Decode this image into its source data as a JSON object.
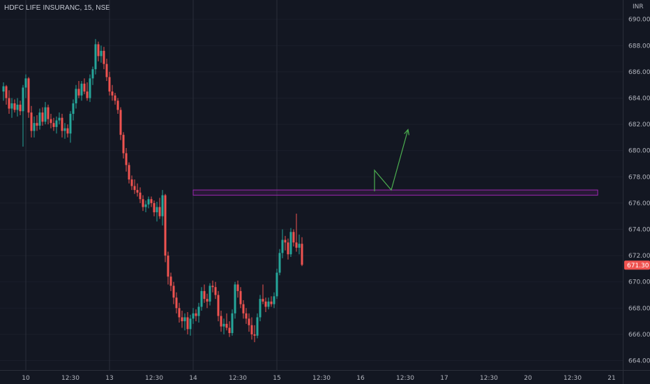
{
  "header": {
    "symbol_line": "HDFC LIFE INSURANC, 15, NSE"
  },
  "axis": {
    "currency": "INR"
  },
  "colors": {
    "up": "#26a69a",
    "down": "#ef5350",
    "zone": "#9c27b0",
    "arrow": "#4caf50",
    "background": "#131722"
  },
  "chart_data": {
    "type": "candlestick",
    "title": "HDFC LIFE INSURANC, 15, NSE",
    "ylabel": "INR",
    "ylim": [
      663.5,
      691.5
    ],
    "yticks": [
      664,
      666,
      668,
      670,
      672,
      674,
      676,
      678,
      680,
      682,
      684,
      686,
      688,
      690
    ],
    "ytick_labels": [
      "664.00",
      "666.00",
      "668.00",
      "670.00",
      "672.00",
      "674.00",
      "676.00",
      "678.00",
      "680.00",
      "682.00",
      "684.00",
      "686.00",
      "688.00",
      "690.00"
    ],
    "xticks": [
      {
        "label": "10",
        "bar": 8
      },
      {
        "label": "12:30",
        "bar": 24
      },
      {
        "label": "13",
        "bar": 38
      },
      {
        "label": "12:30",
        "bar": 54
      },
      {
        "label": "14",
        "bar": 68
      },
      {
        "label": "12:30",
        "bar": 84
      },
      {
        "label": "15",
        "bar": 98
      },
      {
        "label": "12:30",
        "bar": 114
      },
      {
        "label": "16",
        "bar": 128
      },
      {
        "label": "12:30",
        "bar": 144
      },
      {
        "label": "17",
        "bar": 158
      },
      {
        "label": "12:30",
        "bar": 174
      },
      {
        "label": "20",
        "bar": 188
      },
      {
        "label": "12:30",
        "bar": 204
      },
      {
        "label": "21",
        "bar": 218
      }
    ],
    "day_separators": [
      8,
      38,
      68,
      98
    ],
    "current_price": "671.30",
    "candles": [
      [
        684.5,
        685.2,
        683.8,
        684.9
      ],
      [
        684.9,
        685.0,
        683.5,
        684.0
      ],
      [
        684.0,
        684.6,
        682.8,
        683.2
      ],
      [
        683.2,
        684.0,
        682.5,
        683.6
      ],
      [
        683.6,
        683.9,
        682.9,
        683.1
      ],
      [
        683.1,
        684.0,
        682.6,
        683.5
      ],
      [
        683.5,
        683.8,
        682.7,
        683.0
      ],
      [
        683.0,
        685.0,
        680.3,
        684.8
      ],
      [
        684.8,
        685.8,
        684.0,
        685.5
      ],
      [
        685.5,
        685.6,
        682.5,
        682.9
      ],
      [
        682.9,
        683.4,
        681.0,
        681.5
      ],
      [
        681.5,
        682.6,
        681.0,
        682.1
      ],
      [
        682.1,
        682.7,
        681.5,
        681.9
      ],
      [
        681.9,
        683.2,
        681.6,
        682.9
      ],
      [
        682.9,
        683.3,
        681.9,
        682.2
      ],
      [
        682.2,
        683.7,
        682.0,
        683.3
      ],
      [
        683.3,
        683.5,
        682.0,
        682.4
      ],
      [
        682.4,
        682.8,
        681.7,
        682.1
      ],
      [
        682.1,
        682.5,
        681.5,
        681.8
      ],
      [
        681.8,
        682.6,
        681.3,
        682.3
      ],
      [
        682.3,
        682.9,
        682.0,
        682.5
      ],
      [
        682.5,
        682.8,
        681.0,
        681.5
      ],
      [
        681.5,
        682.1,
        680.9,
        681.7
      ],
      [
        681.7,
        682.0,
        681.0,
        681.3
      ],
      [
        681.3,
        683.0,
        680.6,
        682.8
      ],
      [
        682.8,
        683.9,
        682.3,
        683.6
      ],
      [
        683.6,
        685.0,
        683.2,
        684.7
      ],
      [
        684.7,
        685.3,
        684.0,
        684.2
      ],
      [
        684.2,
        685.3,
        683.8,
        685.1
      ],
      [
        685.1,
        685.5,
        684.3,
        684.5
      ],
      [
        684.5,
        685.2,
        683.8,
        684.0
      ],
      [
        684.0,
        685.8,
        683.7,
        685.5
      ],
      [
        685.5,
        686.4,
        685.0,
        686.2
      ],
      [
        686.2,
        688.5,
        685.8,
        688.1
      ],
      [
        688.1,
        688.3,
        686.8,
        687.2
      ],
      [
        687.2,
        688.0,
        686.7,
        687.6
      ],
      [
        687.6,
        687.9,
        686.2,
        686.6
      ],
      [
        686.6,
        687.0,
        685.3,
        685.6
      ],
      [
        685.6,
        686.0,
        684.2,
        684.5
      ],
      [
        684.5,
        685.0,
        683.8,
        684.2
      ],
      [
        684.2,
        684.4,
        683.5,
        683.8
      ],
      [
        683.8,
        684.0,
        682.8,
        683.1
      ],
      [
        683.1,
        683.3,
        680.8,
        681.2
      ],
      [
        681.2,
        681.4,
        679.4,
        679.8
      ],
      [
        679.8,
        680.2,
        678.4,
        678.9
      ],
      [
        678.9,
        679.1,
        677.5,
        677.8
      ],
      [
        677.8,
        678.1,
        677.0,
        677.3
      ],
      [
        677.3,
        677.8,
        676.7,
        677.0
      ],
      [
        677.0,
        677.5,
        676.5,
        676.8
      ],
      [
        676.8,
        677.2,
        676.0,
        676.3
      ],
      [
        676.3,
        676.6,
        675.4,
        675.7
      ],
      [
        675.7,
        676.2,
        675.3,
        675.9
      ],
      [
        675.9,
        676.5,
        675.6,
        676.3
      ],
      [
        676.3,
        676.5,
        675.7,
        676.0
      ],
      [
        676.0,
        676.2,
        675.0,
        675.3
      ],
      [
        675.3,
        676.1,
        674.6,
        675.7
      ],
      [
        675.7,
        676.4,
        674.8,
        675.0
      ],
      [
        675.0,
        677.0,
        674.3,
        676.6
      ],
      [
        676.6,
        676.7,
        671.5,
        672.0
      ],
      [
        672.0,
        672.3,
        669.8,
        670.4
      ],
      [
        670.4,
        670.7,
        669.3,
        669.7
      ],
      [
        669.7,
        670.0,
        668.3,
        668.8
      ],
      [
        668.8,
        669.2,
        667.6,
        668.0
      ],
      [
        668.0,
        668.4,
        666.9,
        667.3
      ],
      [
        667.3,
        667.8,
        666.5,
        667.0
      ],
      [
        667.0,
        667.6,
        666.3,
        667.3
      ],
      [
        667.3,
        667.7,
        666.0,
        666.4
      ],
      [
        666.4,
        667.5,
        665.9,
        667.2
      ],
      [
        667.2,
        668.0,
        666.8,
        667.6
      ],
      [
        667.6,
        667.9,
        667.0,
        667.4
      ],
      [
        667.4,
        668.4,
        666.9,
        668.1
      ],
      [
        668.1,
        669.6,
        667.8,
        669.3
      ],
      [
        669.3,
        669.8,
        668.4,
        668.7
      ],
      [
        668.7,
        669.1,
        668.0,
        668.5
      ],
      [
        668.5,
        669.9,
        668.2,
        669.7
      ],
      [
        669.7,
        670.1,
        669.2,
        669.6
      ],
      [
        669.6,
        670.0,
        668.7,
        669.0
      ],
      [
        669.0,
        669.3,
        667.0,
        667.4
      ],
      [
        667.4,
        667.8,
        666.2,
        666.6
      ],
      [
        666.6,
        667.2,
        666.0,
        666.8
      ],
      [
        666.8,
        667.6,
        666.3,
        666.5
      ],
      [
        666.5,
        667.0,
        665.8,
        666.1
      ],
      [
        666.1,
        667.9,
        665.9,
        667.6
      ],
      [
        667.6,
        670.0,
        667.2,
        669.8
      ],
      [
        669.8,
        670.1,
        668.8,
        669.3
      ],
      [
        669.3,
        669.6,
        668.0,
        668.3
      ],
      [
        668.3,
        668.6,
        667.2,
        667.6
      ],
      [
        667.6,
        668.0,
        666.8,
        667.2
      ],
      [
        667.2,
        667.6,
        666.2,
        666.7
      ],
      [
        666.7,
        667.3,
        665.6,
        666.0
      ],
      [
        666.0,
        666.7,
        665.4,
        665.9
      ],
      [
        665.9,
        667.6,
        665.7,
        667.3
      ],
      [
        667.3,
        669.0,
        667.0,
        668.7
      ],
      [
        668.7,
        669.8,
        668.3,
        668.5
      ],
      [
        668.5,
        668.8,
        667.7,
        668.1
      ],
      [
        668.1,
        668.8,
        667.9,
        668.5
      ],
      [
        668.5,
        668.9,
        668.1,
        668.3
      ],
      [
        668.3,
        669.2,
        668.0,
        668.9
      ],
      [
        668.9,
        671.0,
        668.7,
        670.7
      ],
      [
        670.7,
        672.5,
        670.5,
        672.2
      ],
      [
        672.2,
        674.0,
        671.8,
        673.2
      ],
      [
        673.2,
        673.5,
        672.4,
        673.0
      ],
      [
        673.0,
        673.3,
        671.7,
        672.1
      ],
      [
        672.1,
        674.1,
        671.9,
        673.8
      ],
      [
        673.8,
        674.0,
        672.7,
        673.0
      ],
      [
        673.0,
        675.2,
        672.3,
        672.6
      ],
      [
        672.6,
        673.6,
        672.1,
        672.9
      ],
      [
        672.9,
        673.4,
        671.2,
        671.3
      ]
    ],
    "resistance_zone": {
      "low": 676.6,
      "high": 677.0,
      "from_bar": 68,
      "to_bar": 213
    },
    "arrow_path": [
      {
        "bar": 133.0,
        "price": 676.9
      },
      {
        "bar": 133.0,
        "price": 678.5
      },
      {
        "bar": 139.0,
        "price": 677.0
      },
      {
        "bar": 145.0,
        "price": 681.6
      }
    ]
  }
}
